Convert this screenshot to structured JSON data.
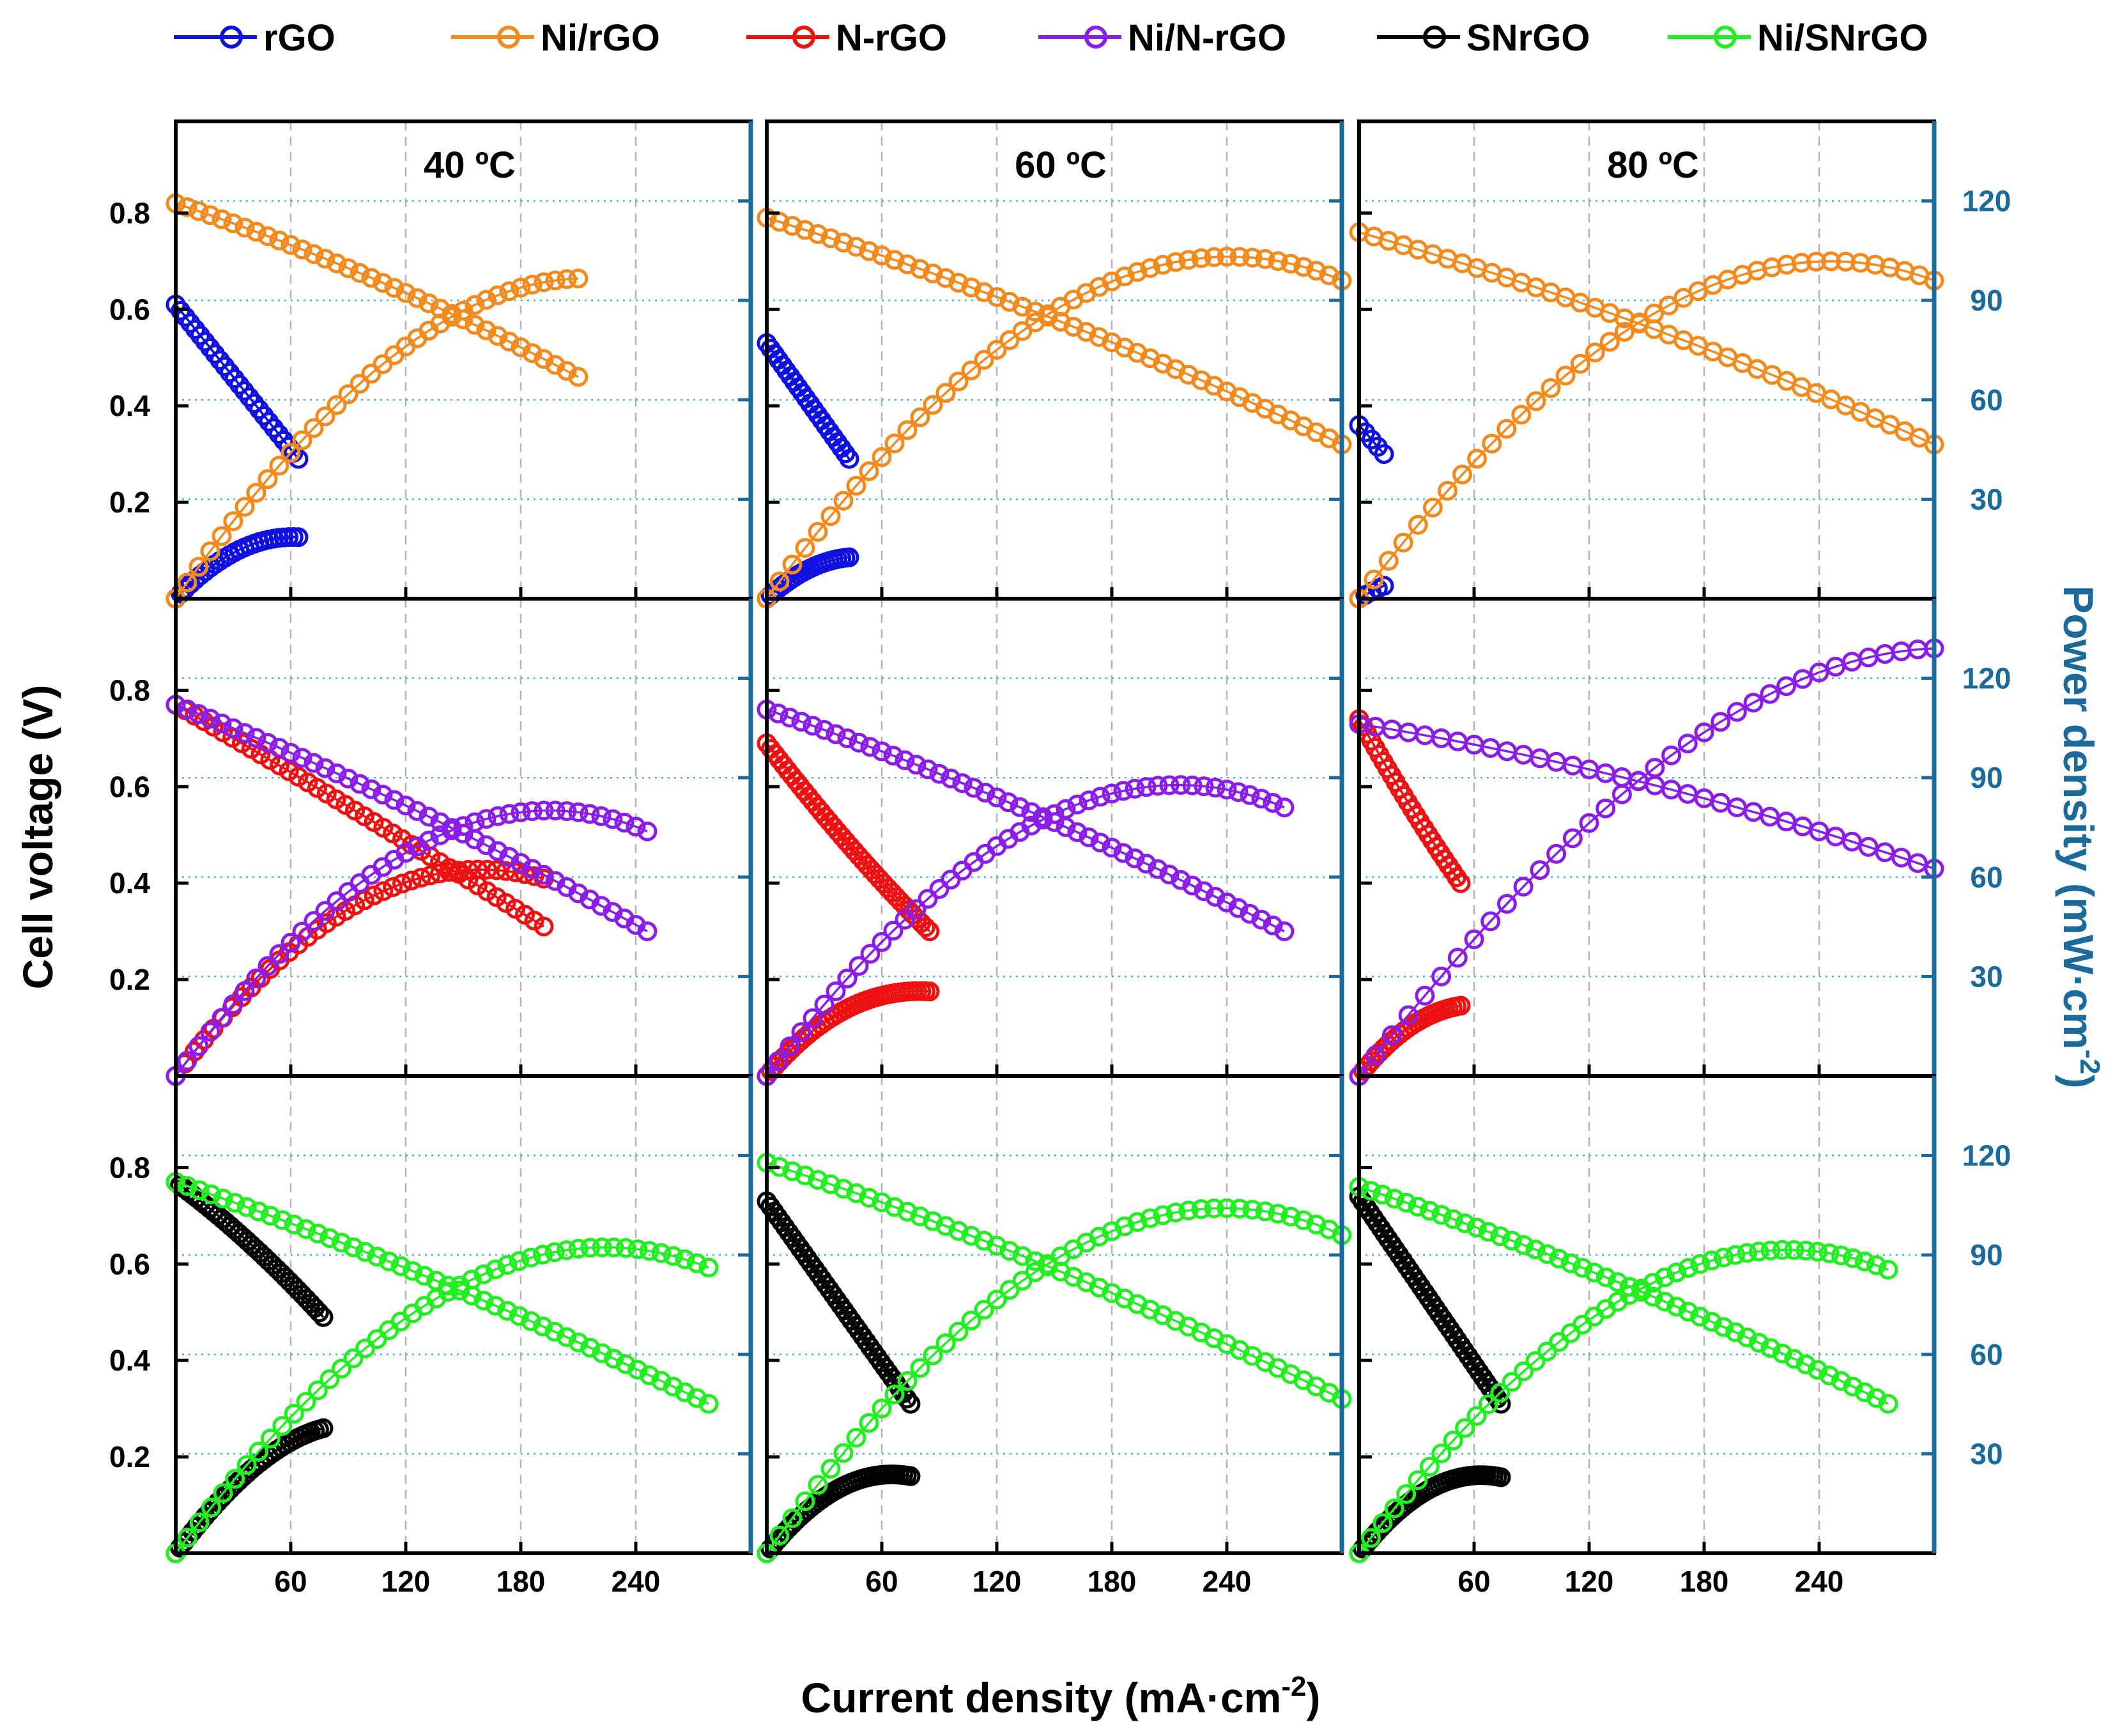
{
  "chart_data": {
    "type": "line",
    "figure": "Polarization and power density curves, 3x3 grid (rows: material groups, columns: temperatures)",
    "x_label": "Current density (mA·cm",
    "x_label_sup": "-2",
    "x_label_end": ")",
    "y_label": "Cell voltage (V)",
    "y2_label": "Power density (mW·cm",
    "y2_label_sup": "-2",
    "y2_label_end": ")",
    "xlim": [
      0,
      300
    ],
    "ylim": [
      0,
      0.99
    ],
    "y2lim": [
      0,
      144
    ],
    "x_ticks": [
      60,
      120,
      180,
      240
    ],
    "y_ticks": [
      0.2,
      0.4,
      0.6,
      0.8
    ],
    "y2_ticks": [
      30,
      60,
      90,
      120
    ],
    "x_tick_labels": [
      "60",
      "120",
      "180",
      "240"
    ],
    "y_tick_labels": [
      "0.2",
      "0.4",
      "0.6",
      "0.8"
    ],
    "y2_tick_labels": [
      "30",
      "60",
      "90",
      "120"
    ],
    "column_titles": [
      "40 ºC",
      "60 ºC",
      "80 ºC"
    ],
    "legend": [
      {
        "name": "rGO",
        "color": "#1010e0"
      },
      {
        "name": "Ni/rGO",
        "color": "#f28a1e"
      },
      {
        "name": "N-rGO",
        "color": "#ee1111"
      },
      {
        "name": "Ni/N-rGO",
        "color": "#8a1ee8"
      },
      {
        "name": "SNrGO",
        "color": "#000000"
      },
      {
        "name": "Ni/SNrGO",
        "color": "#22ee22"
      }
    ],
    "panels": [
      {
        "row": 0,
        "col": 0,
        "series": [
          {
            "name": "rGO",
            "color": "#1010e0",
            "v0": 0.61,
            "v1": 0.29,
            "imax": 64,
            "n": 26,
            "curv": 0.0
          },
          {
            "name": "Ni/rGO",
            "color": "#f28a1e",
            "v0": 0.82,
            "v1": 0.46,
            "imax": 210,
            "n": 36,
            "curv": 0.45
          }
        ]
      },
      {
        "row": 0,
        "col": 1,
        "series": [
          {
            "name": "rGO",
            "color": "#1010e0",
            "v0": 0.53,
            "v1": 0.29,
            "imax": 43,
            "n": 22,
            "curv": 0.0
          },
          {
            "name": "Ni/rGO",
            "color": "#f28a1e",
            "v0": 0.79,
            "v1": 0.32,
            "imax": 300,
            "n": 46,
            "curv": 0.55
          }
        ]
      },
      {
        "row": 0,
        "col": 2,
        "series": [
          {
            "name": "rGO",
            "color": "#1010e0",
            "v0": 0.36,
            "v1": 0.3,
            "imax": 13,
            "n": 5,
            "curv": 0.0
          },
          {
            "name": "Ni/rGO",
            "color": "#f28a1e",
            "v0": 0.76,
            "v1": 0.32,
            "imax": 300,
            "n": 40,
            "curv": 0.55
          }
        ]
      },
      {
        "row": 1,
        "col": 0,
        "series": [
          {
            "name": "N-rGO",
            "color": "#ee1111",
            "v0": 0.77,
            "v1": 0.31,
            "imax": 192,
            "n": 40,
            "curv": 0.1
          },
          {
            "name": "Ni/N-rGO",
            "color": "#8a1ee8",
            "v0": 0.77,
            "v1": 0.3,
            "imax": 246,
            "n": 42,
            "curv": 0.45
          }
        ]
      },
      {
        "row": 1,
        "col": 1,
        "series": [
          {
            "name": "N-rGO",
            "color": "#ee1111",
            "v0": 0.69,
            "v1": 0.3,
            "imax": 85,
            "n": 40,
            "curv": -0.3
          },
          {
            "name": "Ni/N-rGO",
            "color": "#8a1ee8",
            "v0": 0.76,
            "v1": 0.3,
            "imax": 270,
            "n": 46,
            "curv": 0.5
          }
        ]
      },
      {
        "row": 1,
        "col": 2,
        "series": [
          {
            "name": "N-rGO",
            "color": "#ee1111",
            "v0": 0.74,
            "v1": 0.4,
            "imax": 53,
            "n": 26,
            "curv": -0.2
          },
          {
            "name": "Ni/N-rGO",
            "color": "#8a1ee8",
            "v0": 0.73,
            "v1": 0.43,
            "imax": 300,
            "n": 36,
            "curv": 0.6
          }
        ]
      },
      {
        "row": 2,
        "col": 0,
        "series": [
          {
            "name": "SNrGO",
            "color": "#000000",
            "v0": 0.77,
            "v1": 0.49,
            "imax": 77,
            "n": 36,
            "curv": 0.3
          },
          {
            "name": "Ni/SNrGO",
            "color": "#22ee22",
            "v0": 0.77,
            "v1": 0.31,
            "imax": 278,
            "n": 46,
            "curv": 0.45
          }
        ]
      },
      {
        "row": 2,
        "col": 1,
        "series": [
          {
            "name": "SNrGO",
            "color": "#000000",
            "v0": 0.73,
            "v1": 0.31,
            "imax": 75,
            "n": 40,
            "curv": 0.0
          },
          {
            "name": "Ni/SNrGO",
            "color": "#22ee22",
            "v0": 0.81,
            "v1": 0.32,
            "imax": 300,
            "n": 46,
            "curv": 0.55
          }
        ]
      },
      {
        "row": 2,
        "col": 2,
        "series": [
          {
            "name": "SNrGO",
            "color": "#000000",
            "v0": 0.74,
            "v1": 0.31,
            "imax": 74,
            "n": 40,
            "curv": 0.0
          },
          {
            "name": "Ni/SNrGO",
            "color": "#22ee22",
            "v0": 0.76,
            "v1": 0.31,
            "imax": 276,
            "n": 46,
            "curv": 0.5
          }
        ]
      }
    ]
  }
}
